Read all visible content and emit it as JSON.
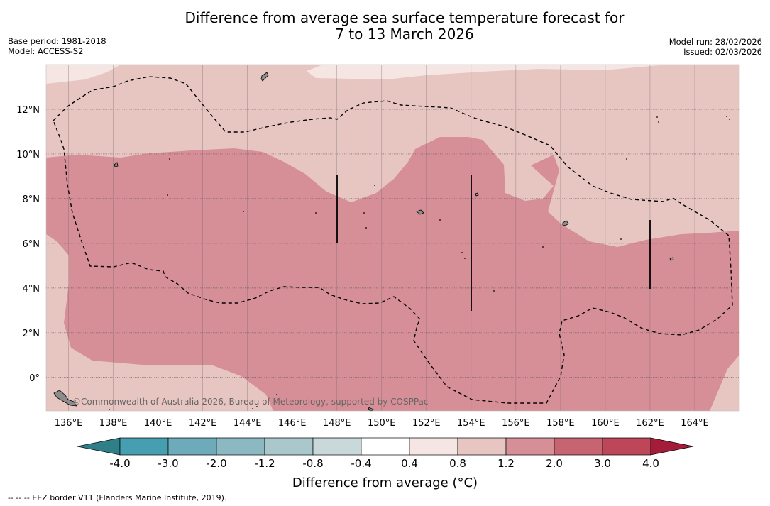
{
  "title": {
    "line1": "Difference from average sea surface temperature forecast for",
    "line2": "7 to 13 March 2026"
  },
  "meta_left": {
    "base_period": "Base period: 1981-2018",
    "model": "Model: ACCESS-S2"
  },
  "meta_right": {
    "model_run": "Model run: 28/02/2026",
    "issued": "Issued: 02/03/2026"
  },
  "map": {
    "lon_range": [
      135,
      166
    ],
    "lat_range": [
      -1.5,
      14
    ],
    "x_ticks": [
      "136°E",
      "138°E",
      "140°E",
      "142°E",
      "144°E",
      "146°E",
      "148°E",
      "150°E",
      "152°E",
      "154°E",
      "156°E",
      "158°E",
      "160°E",
      "162°E",
      "164°E"
    ],
    "x_tick_values": [
      136,
      138,
      140,
      142,
      144,
      146,
      148,
      150,
      152,
      154,
      156,
      158,
      160,
      162,
      164
    ],
    "y_ticks": [
      "0°",
      "2°N",
      "4°N",
      "6°N",
      "8°N",
      "10°N",
      "12°N"
    ],
    "y_tick_values": [
      0,
      2,
      4,
      6,
      8,
      10,
      12
    ],
    "copyright": "©Commonwealth of Australia 2026, Bureau of Meteorology, supported by COSPPac",
    "colors": {
      "band_0p4_0p8": "#f5e6e4",
      "band_0p8_1p2": "#e7c6c2",
      "band_1p2_2p0": "#d68e97",
      "land": "#8c8c8c",
      "eez": "#000000"
    }
  },
  "colorbar": {
    "tick_labels": [
      "-4.0",
      "-3.0",
      "-2.0",
      "-1.2",
      "-0.8",
      "-0.4",
      "0.4",
      "0.8",
      "1.2",
      "2.0",
      "3.0",
      "4.0"
    ],
    "bins": [
      "#2e7f87",
      "#469fb1",
      "#6dabbb",
      "#8cb8c2",
      "#aac8cb",
      "#c8d8db",
      "#ffffff",
      "#f5e6e4",
      "#e7c6c2",
      "#d68e97",
      "#c76472",
      "#bd4658",
      "#a51c3a"
    ],
    "title": "Difference from average (°C)"
  },
  "footnote": "--  --  -- EEZ border V11 (Flanders Marine Institute, 2019)."
}
